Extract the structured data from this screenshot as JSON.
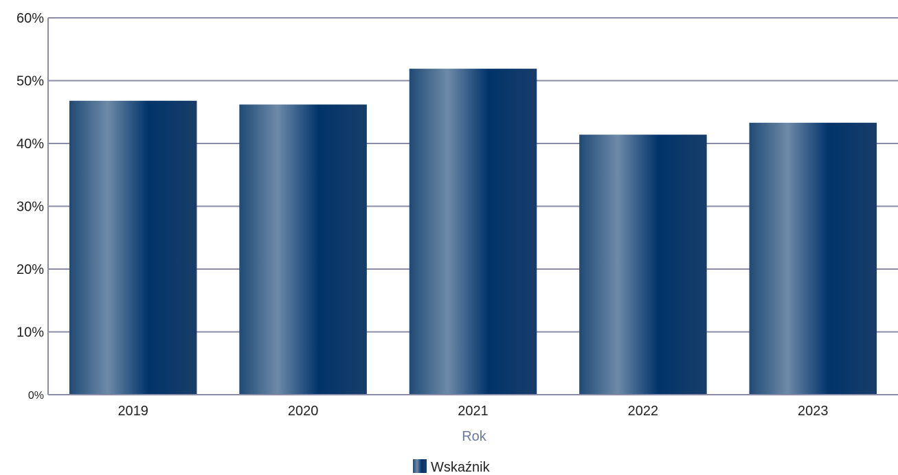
{
  "chart_data": {
    "type": "bar",
    "categories": [
      "2019",
      "2020",
      "2021",
      "2022",
      "2023"
    ],
    "series": [
      {
        "name": "Wskaźnik",
        "values": [
          46.8,
          46.2,
          51.9,
          41.4,
          43.3
        ]
      }
    ],
    "xlabel": "Rok",
    "ylabel": "",
    "ylim": [
      0,
      60
    ],
    "yticks": [
      "0%",
      "10%",
      "20%",
      "30%",
      "40%",
      "50%",
      "60%"
    ],
    "grid": true,
    "legend": "bottom-center",
    "colors": {
      "bar_dark": "#01336a",
      "bar_light": "#6e8aa8",
      "grid": "#8a8ba6",
      "axis_label": "#6b7a99"
    }
  }
}
